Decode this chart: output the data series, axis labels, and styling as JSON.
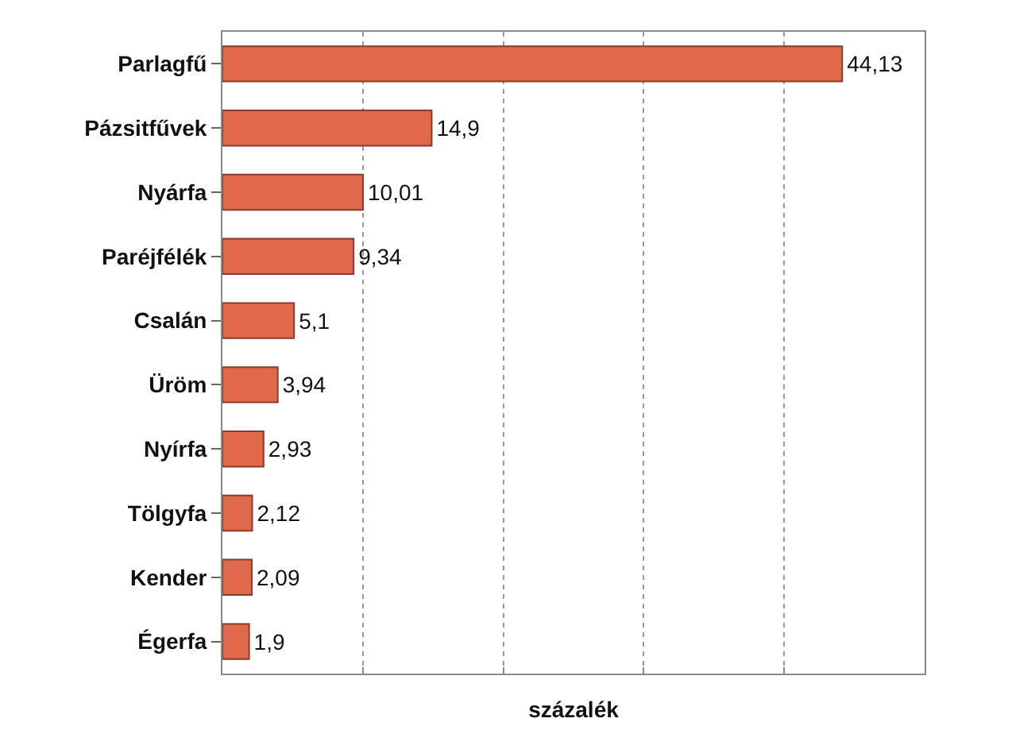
{
  "chart_data": {
    "type": "bar",
    "orientation": "horizontal",
    "xlabel": "százalék",
    "categories": [
      "Parlagfű",
      "Pázsitfűvek",
      "Nyárfa",
      "Paréjfélék",
      "Csalán",
      "Üröm",
      "Nyírfa",
      "Tölgyfa",
      "Kender",
      "Égerfa"
    ],
    "values": [
      44.13,
      14.9,
      10.01,
      9.34,
      5.1,
      3.94,
      2.93,
      2.12,
      2.09,
      1.9
    ],
    "value_labels": [
      "44,13",
      "14,9",
      "10,01",
      "9,34",
      "5,1",
      "3,94",
      "2,93",
      "2,12",
      "2,09",
      "1,9"
    ],
    "color": "#e0694c",
    "xlim": [
      0,
      50
    ],
    "xticks": [
      {
        "value": 0,
        "label": null
      },
      {
        "value": 10,
        "label": null
      },
      {
        "value": 20,
        "label": null
      },
      {
        "value": 30,
        "label": null
      },
      {
        "value": 40,
        "label": null
      },
      {
        "value": 50,
        "label": null
      }
    ],
    "grid": "x",
    "line_style": "dotted",
    "tick_labels": "y"
  }
}
